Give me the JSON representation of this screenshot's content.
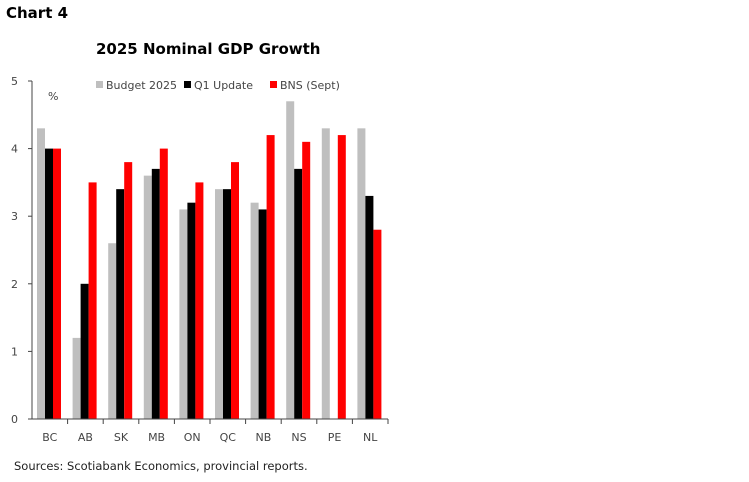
{
  "header": {
    "chart_label": "Chart 4"
  },
  "footer": {
    "source": "Sources: Scotiabank Economics, provincial reports."
  },
  "chart_data": {
    "type": "bar",
    "title": "2025 Nominal GDP Growth",
    "ylabel": "%",
    "xlabel": "",
    "ylim": [
      0,
      5
    ],
    "yticks": [
      0,
      1,
      2,
      3,
      4,
      5
    ],
    "grid": false,
    "legend_position": "top",
    "categories": [
      "BC",
      "AB",
      "SK",
      "MB",
      "ON",
      "QC",
      "NB",
      "NS",
      "PE",
      "NL"
    ],
    "series": [
      {
        "name": "Budget 2025",
        "color": "#bfbfbf",
        "values": [
          4.3,
          1.2,
          2.6,
          3.6,
          3.1,
          3.4,
          3.2,
          4.7,
          4.3,
          4.3
        ]
      },
      {
        "name": "Q1 Update",
        "color": "#000000",
        "values": [
          4.0,
          2.0,
          3.4,
          3.7,
          3.2,
          3.4,
          3.1,
          3.7,
          null,
          3.3
        ]
      },
      {
        "name": "BNS (Sept)",
        "color": "#ff0000",
        "values": [
          4.0,
          3.5,
          3.8,
          4.0,
          3.5,
          3.8,
          4.2,
          4.1,
          4.2,
          2.8
        ]
      }
    ]
  }
}
